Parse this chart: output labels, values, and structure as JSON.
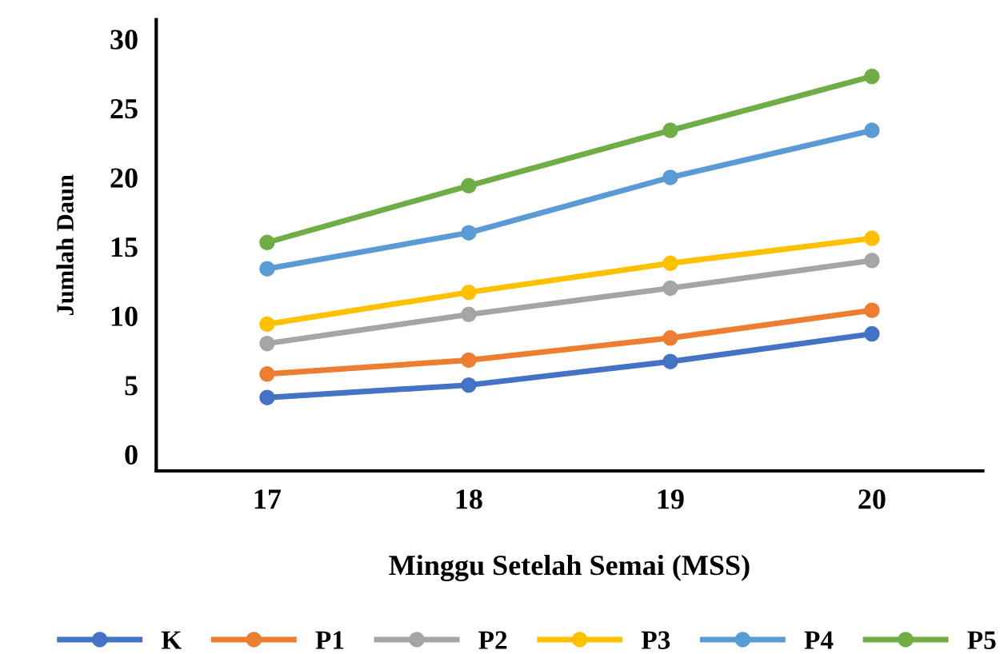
{
  "chart_data": {
    "type": "line",
    "xlabel": "Minggu Setelah Semai (MSS)",
    "ylabel": "Jumlah Daun",
    "categories": [
      "17",
      "18",
      "19",
      "20"
    ],
    "ylim": [
      -1.2,
      31.4
    ],
    "yticks": [
      0,
      5,
      10,
      15,
      20,
      25,
      30
    ],
    "grid": false,
    "legend": "bottom",
    "marker": "circle",
    "line_style": "solid",
    "series": [
      {
        "name": "K",
        "color": "#4472c4",
        "values": [
          4.1,
          5.0,
          6.7,
          8.7
        ]
      },
      {
        "name": "P1",
        "color": "#ed7d31",
        "values": [
          5.8,
          6.8,
          8.4,
          10.4
        ]
      },
      {
        "name": "P2",
        "color": "#a5a5a5",
        "values": [
          8.0,
          10.1,
          12.0,
          14.0
        ]
      },
      {
        "name": "P3",
        "color": "#ffc000",
        "values": [
          9.4,
          11.7,
          13.8,
          15.6
        ]
      },
      {
        "name": "P4",
        "color": "#5b9bd5",
        "values": [
          13.4,
          16.0,
          20.0,
          23.4
        ]
      },
      {
        "name": "P5",
        "color": "#70ad47",
        "values": [
          15.3,
          19.4,
          23.4,
          27.3
        ]
      }
    ]
  }
}
